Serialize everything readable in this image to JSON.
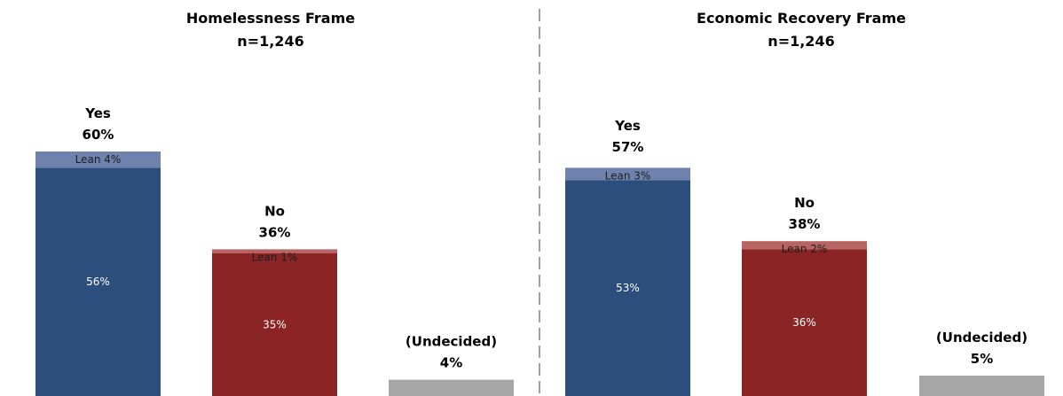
{
  "chart_data": [
    {
      "type": "bar",
      "title": "Homelessness Frame",
      "subtitle": "n=1,246",
      "ylim": [
        0,
        60
      ],
      "categories": [
        {
          "label": "Yes",
          "total": 60,
          "total_label": "60%",
          "segments": [
            {
              "name": "",
              "value": 56,
              "label": "56%",
              "color": "#2b4e7c"
            },
            {
              "name": "Lean",
              "value": 4,
              "label": "Lean 4%",
              "color": "#6e82ad"
            }
          ]
        },
        {
          "label": "No",
          "total": 36,
          "total_label": "36%",
          "segments": [
            {
              "name": "",
              "value": 35,
              "label": "35%",
              "color": "#8b2424"
            },
            {
              "name": "Lean",
              "value": 1,
              "label": "Lean 1%",
              "color": "#b86463"
            }
          ]
        },
        {
          "label": "(Undecided)",
          "total": 4,
          "total_label": "4%",
          "segments": [
            {
              "name": "",
              "value": 4,
              "label": "",
              "color": "#a6a6a6"
            }
          ]
        }
      ]
    },
    {
      "type": "bar",
      "title": "Economic Recovery Frame",
      "subtitle": "n=1,246",
      "ylim": [
        0,
        60
      ],
      "categories": [
        {
          "label": "Yes",
          "total": 57,
          "total_label": "57%",
          "segments": [
            {
              "name": "",
              "value": 53,
              "label": "53%",
              "color": "#2b4e7c"
            },
            {
              "name": "Lean",
              "value": 3,
              "label": "Lean 3%",
              "color": "#6e82ad"
            }
          ]
        },
        {
          "label": "No",
          "total": 38,
          "total_label": "38%",
          "segments": [
            {
              "name": "",
              "value": 36,
              "label": "36%",
              "color": "#8b2424"
            },
            {
              "name": "Lean",
              "value": 2,
              "label": "Lean 2%",
              "color": "#b86463"
            }
          ]
        },
        {
          "label": "(Undecided)",
          "total": 5,
          "total_label": "5%",
          "segments": [
            {
              "name": "",
              "value": 5,
              "label": "",
              "color": "#a6a6a6"
            }
          ]
        }
      ]
    }
  ],
  "divider_color": "#808080"
}
